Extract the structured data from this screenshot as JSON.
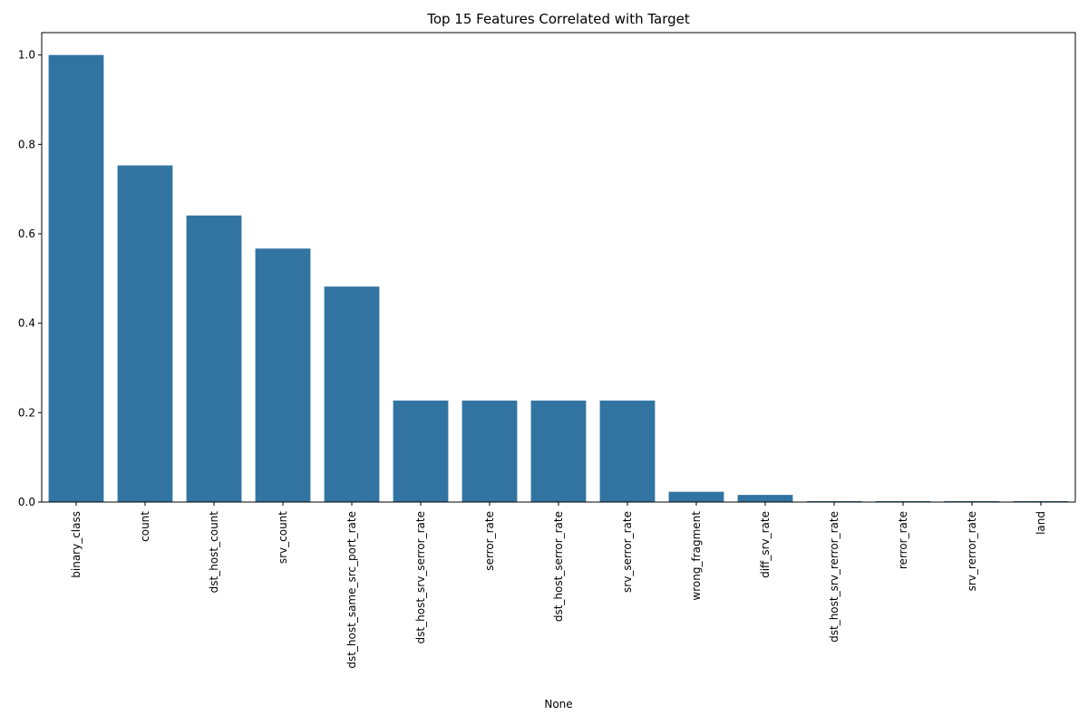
{
  "chart_data": {
    "type": "bar",
    "title": "Top 15 Features Correlated with Target",
    "xlabel": "None",
    "ylabel": "",
    "categories": [
      "binary_class",
      "count",
      "dst_host_count",
      "srv_count",
      "dst_host_same_src_port_rate",
      "dst_host_srv_serror_rate",
      "serror_rate",
      "dst_host_serror_rate",
      "srv_serror_rate",
      "wrong_fragment",
      "diff_srv_rate",
      "dst_host_srv_rerror_rate",
      "rerror_rate",
      "srv_rerror_rate",
      "land"
    ],
    "values": [
      1.0,
      0.753,
      0.641,
      0.567,
      0.482,
      0.227,
      0.227,
      0.227,
      0.227,
      0.023,
      0.016,
      0.002,
      0.002,
      0.002,
      0.002
    ],
    "ylim": [
      0,
      1.05
    ],
    "yticks": [
      0.0,
      0.2,
      0.4,
      0.6,
      0.8,
      1.0
    ],
    "ytick_labels": [
      "0.0",
      "0.2",
      "0.4",
      "0.6",
      "0.8",
      "1.0"
    ],
    "bar_color": "#3274a1",
    "grid": false,
    "legend": "none"
  }
}
